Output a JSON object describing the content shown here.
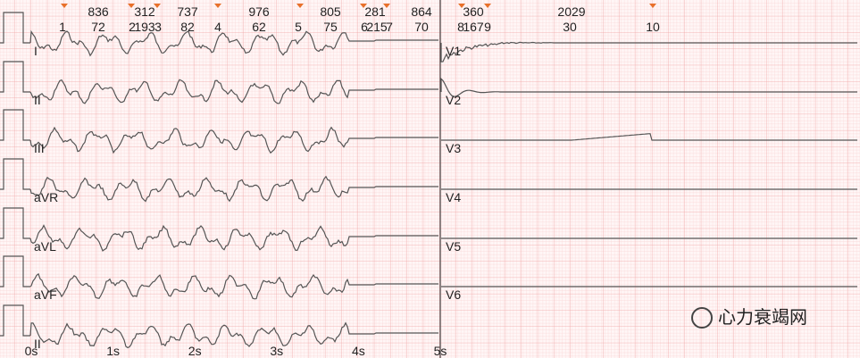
{
  "intervals": [
    "836",
    "312",
    "737",
    "976",
    "805",
    "281",
    "864",
    "360",
    "2029"
  ],
  "beat_labels": [
    "1",
    "72",
    "2",
    "193",
    "3",
    "82",
    "4",
    "62",
    "5",
    "75",
    "6",
    "215",
    "7",
    "70",
    "8",
    "167",
    "9",
    "30",
    "10"
  ],
  "leads_left": [
    "I",
    "II",
    "III",
    "aVR",
    "aVL",
    "aVF",
    "II"
  ],
  "leads_right": [
    "V1",
    "V2",
    "V3",
    "V4",
    "V5",
    "V6"
  ],
  "time_labels": [
    "0s",
    "1s",
    "2s",
    "3s",
    "4s",
    "5s"
  ],
  "watermark": "心力衰竭网"
}
